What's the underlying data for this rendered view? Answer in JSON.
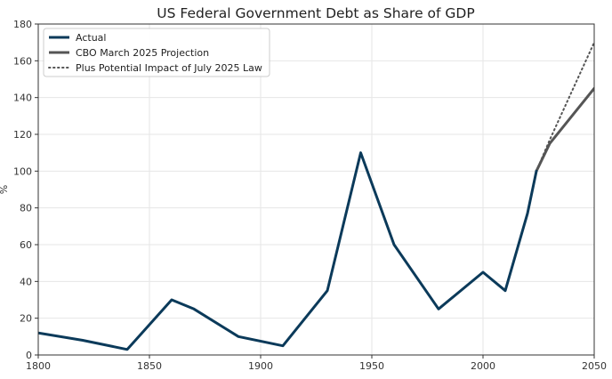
{
  "chart_data": {
    "type": "line",
    "title": "US Federal Government Debt as Share of GDP",
    "xlabel": "",
    "ylabel": "%",
    "xlim": [
      1800,
      2050
    ],
    "ylim": [
      0,
      180
    ],
    "xticks": [
      1800,
      1850,
      1900,
      1950,
      2000,
      2050
    ],
    "yticks": [
      0,
      20,
      40,
      60,
      80,
      100,
      120,
      140,
      160,
      180
    ],
    "grid": true,
    "legend_position": "upper left",
    "series": [
      {
        "name": "Actual",
        "color": "#0b3a5a",
        "style": "solid",
        "x": [
          1800,
          1820,
          1840,
          1860,
          1870,
          1890,
          1910,
          1930,
          1945,
          1960,
          1980,
          2000,
          2010,
          2020,
          2024
        ],
        "values": [
          12,
          8,
          3,
          30,
          25,
          10,
          5,
          35,
          110,
          60,
          25,
          45,
          35,
          77,
          100
        ]
      },
      {
        "name": "CBO March 2025 Projection",
        "color": "#555555",
        "style": "solid",
        "x": [
          2024,
          2030,
          2050
        ],
        "values": [
          100,
          115,
          145
        ]
      },
      {
        "name": "Plus Potential Impact of July 2025 Law",
        "color": "#555555",
        "style": "dotted",
        "x": [
          2024,
          2030,
          2050
        ],
        "values": [
          100,
          117,
          170
        ]
      }
    ]
  }
}
